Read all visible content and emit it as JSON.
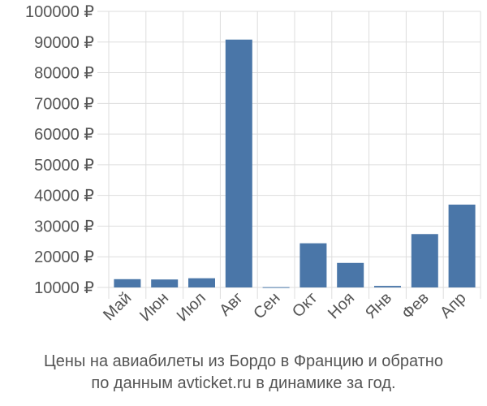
{
  "chart_data": {
    "type": "bar",
    "categories": [
      "Май",
      "Июн",
      "Июл",
      "Авг",
      "Сен",
      "Окт",
      "Ноя",
      "Янв",
      "Фев",
      "Апр"
    ],
    "values": [
      12700,
      12600,
      13000,
      90800,
      10100,
      24400,
      18000,
      10500,
      27400,
      37000
    ],
    "ylim": [
      10000,
      100000
    ],
    "yticks": [
      10000,
      20000,
      30000,
      40000,
      50000,
      60000,
      70000,
      80000,
      90000,
      100000
    ],
    "ytick_labels": [
      "10000 ₽",
      "20000 ₽",
      "30000 ₽",
      "40000 ₽",
      "50000 ₽",
      "60000 ₽",
      "70000 ₽",
      "80000 ₽",
      "90000 ₽",
      "100000 ₽"
    ],
    "grid": true,
    "bar_color": "#4a76a8",
    "grid_color": "#dddddd"
  },
  "caption": {
    "line1": "Цены на авиабилеты из Бордо в Францию и обратно",
    "line2": "по данным avticket.ru в динамике за год."
  }
}
